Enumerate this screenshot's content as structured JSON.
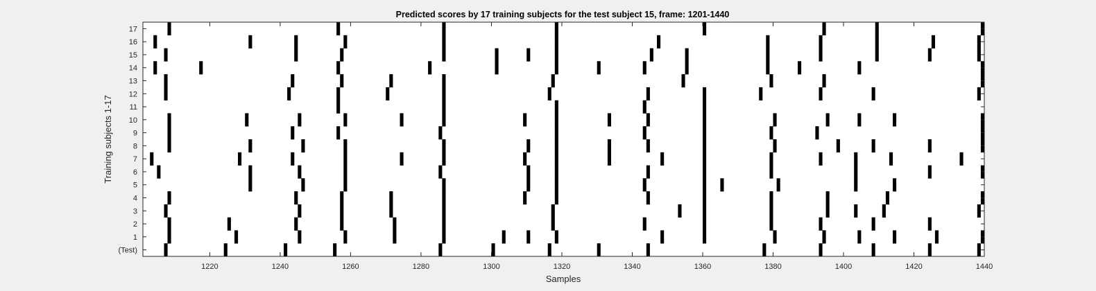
{
  "chart_data": {
    "type": "raster",
    "title": "Predicted scores by 17 training subjects for the test subject 15, frame: 1201-1440",
    "xlabel": "Samples",
    "ylabel": "Training subjects 1-17",
    "xlim": [
      1201,
      1440
    ],
    "xticks": [
      1220,
      1240,
      1260,
      1280,
      1300,
      1320,
      1340,
      1360,
      1380,
      1400,
      1420,
      1440
    ],
    "yticks": [
      "(Test)",
      "1",
      "2",
      "3",
      "4",
      "5",
      "6",
      "7",
      "8",
      "9",
      "10",
      "11",
      "12",
      "13",
      "14",
      "15",
      "16",
      "17"
    ],
    "colors": {
      "background": "#f0f0f0",
      "plot": "#ffffff",
      "event": "#000000",
      "axis": "#262626"
    },
    "rows": [
      {
        "label": "(Test)",
        "events": [
          1207,
          1224,
          1241,
          1255,
          1285,
          1300,
          1316,
          1330,
          1344,
          1377,
          1393,
          1408,
          1424,
          1438
        ]
      },
      {
        "label": "1",
        "events": [
          1208,
          1227,
          1245,
          1258,
          1272,
          1286,
          1303,
          1310,
          1318,
          1348,
          1360,
          1380,
          1394,
          1404,
          1414,
          1426,
          1439
        ]
      },
      {
        "label": "2",
        "events": [
          1208,
          1225,
          1244,
          1257,
          1272,
          1286,
          1317,
          1343,
          1360,
          1379,
          1393,
          1408,
          1424
        ]
      },
      {
        "label": "3",
        "events": [
          1207,
          1245,
          1257,
          1271,
          1286,
          1317,
          1353,
          1360,
          1379,
          1395,
          1403,
          1411,
          1438
        ]
      },
      {
        "label": "4",
        "events": [
          1208,
          1244,
          1257,
          1271,
          1286,
          1309,
          1318,
          1344,
          1360,
          1379,
          1395,
          1412,
          1439
        ]
      },
      {
        "label": "5",
        "events": [
          1231,
          1246,
          1258,
          1286,
          1310,
          1318,
          1343,
          1360,
          1365,
          1381,
          1403,
          1414
        ]
      },
      {
        "label": "6",
        "events": [
          1205,
          1231,
          1245,
          1258,
          1285,
          1310,
          1318,
          1344,
          1360,
          1379,
          1403,
          1424,
          1439
        ]
      },
      {
        "label": "7",
        "events": [
          1203,
          1228,
          1243,
          1258,
          1274,
          1286,
          1309,
          1318,
          1333,
          1348,
          1360,
          1379,
          1393,
          1403,
          1413,
          1433
        ]
      },
      {
        "label": "8",
        "events": [
          1208,
          1231,
          1246,
          1258,
          1286,
          1310,
          1318,
          1333,
          1344,
          1360,
          1380,
          1398,
          1408,
          1424,
          1439
        ]
      },
      {
        "label": "9",
        "events": [
          1208,
          1243,
          1256,
          1285,
          1318,
          1343,
          1360,
          1379,
          1392,
          1439
        ]
      },
      {
        "label": "10",
        "events": [
          1208,
          1230,
          1245,
          1258,
          1274,
          1286,
          1309,
          1318,
          1333,
          1344,
          1360,
          1380,
          1395,
          1404,
          1414,
          1439
        ]
      },
      {
        "label": "11",
        "events": [
          1256,
          1286,
          1318,
          1343,
          1360
        ]
      },
      {
        "label": "12",
        "events": [
          1207,
          1242,
          1256,
          1270,
          1286,
          1316,
          1344,
          1360,
          1376,
          1393,
          1408,
          1438
        ]
      },
      {
        "label": "13",
        "events": [
          1207,
          1243,
          1257,
          1271,
          1286,
          1317,
          1354,
          1379,
          1394,
          1439
        ]
      },
      {
        "label": "14",
        "events": [
          1204,
          1217,
          1256,
          1282,
          1301,
          1318,
          1330,
          1343,
          1355,
          1378,
          1387,
          1404,
          1439
        ]
      },
      {
        "label": "15",
        "events": [
          1207,
          1244,
          1257,
          1286,
          1301,
          1310,
          1318,
          1345,
          1355,
          1378,
          1393,
          1409,
          1424,
          1438
        ]
      },
      {
        "label": "16",
        "events": [
          1204,
          1231,
          1244,
          1258,
          1286,
          1318,
          1347,
          1378,
          1393,
          1409,
          1425,
          1438
        ]
      },
      {
        "label": "17",
        "events": [
          1208,
          1256,
          1286,
          1318,
          1360,
          1394,
          1409,
          1439
        ]
      }
    ]
  }
}
